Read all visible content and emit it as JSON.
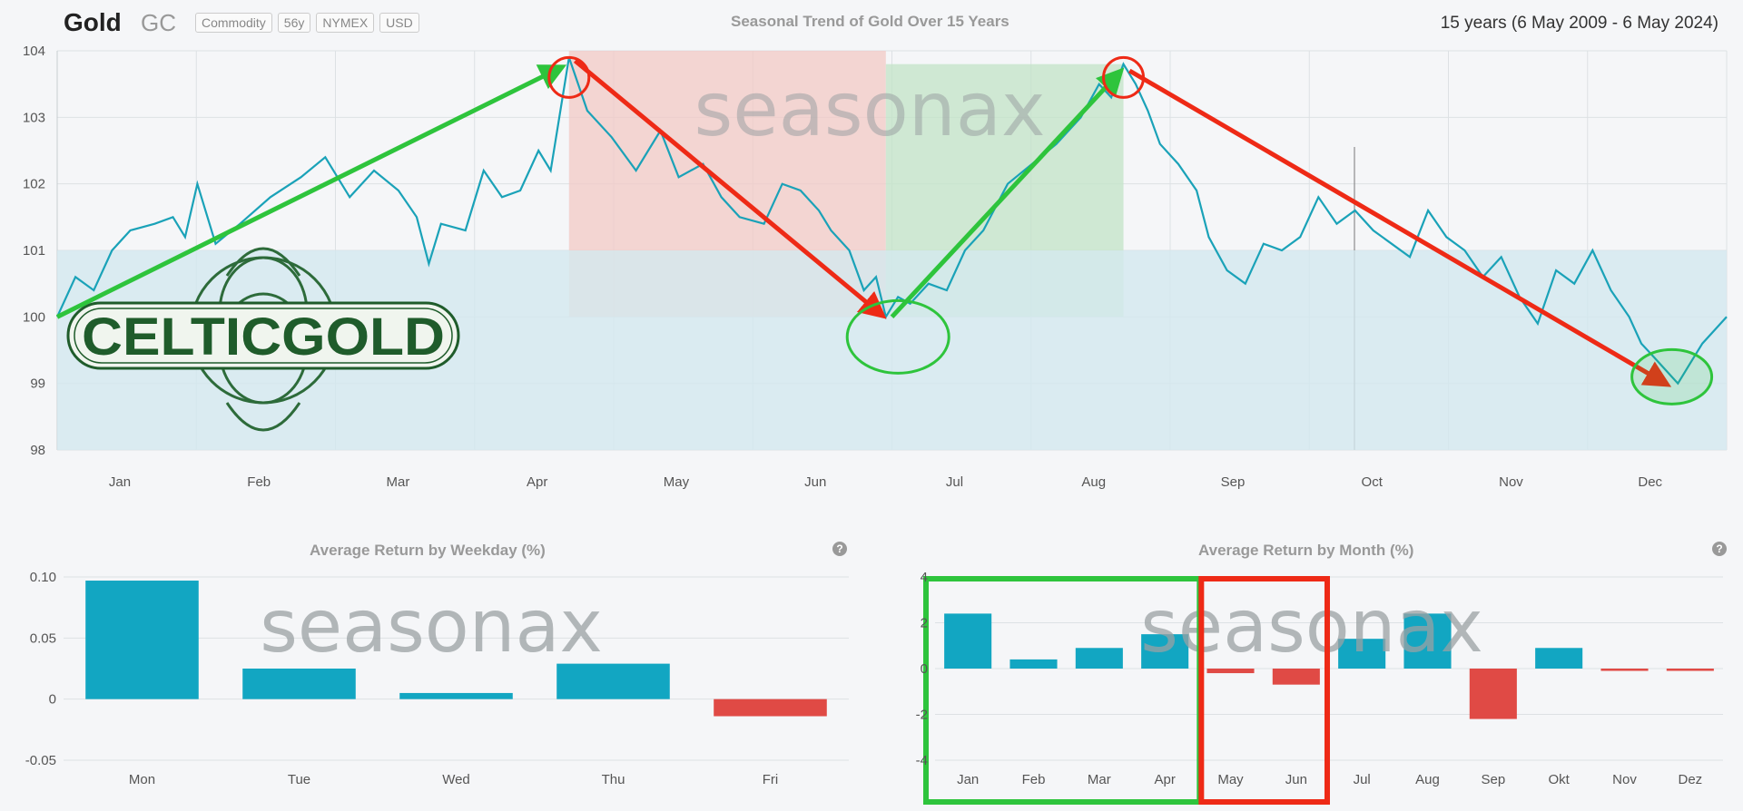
{
  "header": {
    "symbol_name": "Gold",
    "ticker": "GC",
    "tags": [
      "Commodity",
      "56y",
      "NYMEX",
      "USD"
    ],
    "title": "Seasonal Trend of Gold Over 15 Years",
    "range": "15 years (6 May 2009 - 6 May 2024)"
  },
  "watermark": "seasonax",
  "logo_text": "CELTICGOLD",
  "colors": {
    "line": "#1aa2b8",
    "area": "#d3e9ef",
    "bar_pos": "#12a6c2",
    "bar_neg": "#e04a45",
    "arrow_green": "#2ec43c",
    "arrow_red": "#ee2a16",
    "bear_zone": "#f2c9c5",
    "bull_zone": "#c1e3c7"
  },
  "chart_data": [
    {
      "type": "line",
      "title": "Seasonal Trend of Gold Over 15 Years",
      "x_labels": [
        "Jan",
        "Feb",
        "Mar",
        "Apr",
        "May",
        "Jun",
        "Jul",
        "Aug",
        "Sep",
        "Oct",
        "Nov",
        "Dec"
      ],
      "y_ticks": [
        "104",
        "103",
        "102",
        "101",
        "100",
        "99",
        "98"
      ],
      "ylim": [
        98,
        104
      ],
      "grid": true,
      "anchors": [
        [
          0.0,
          100.0
        ],
        [
          0.15,
          100.6
        ],
        [
          0.3,
          100.4
        ],
        [
          0.45,
          101.0
        ],
        [
          0.6,
          101.3
        ],
        [
          0.8,
          101.4
        ],
        [
          0.95,
          101.5
        ],
        [
          1.05,
          101.2
        ],
        [
          1.15,
          102.0
        ],
        [
          1.3,
          101.1
        ],
        [
          1.5,
          101.4
        ],
        [
          1.75,
          101.8
        ],
        [
          2.0,
          102.1
        ],
        [
          2.2,
          102.4
        ],
        [
          2.4,
          101.8
        ],
        [
          2.6,
          102.2
        ],
        [
          2.8,
          101.9
        ],
        [
          2.95,
          101.5
        ],
        [
          3.05,
          100.8
        ],
        [
          3.15,
          101.4
        ],
        [
          3.35,
          101.3
        ],
        [
          3.5,
          102.2
        ],
        [
          3.65,
          101.8
        ],
        [
          3.8,
          101.9
        ],
        [
          3.95,
          102.5
        ],
        [
          4.05,
          102.2
        ],
        [
          4.2,
          103.9
        ],
        [
          4.35,
          103.1
        ],
        [
          4.55,
          102.7
        ],
        [
          4.75,
          102.2
        ],
        [
          4.95,
          102.8
        ],
        [
          5.1,
          102.1
        ],
        [
          5.3,
          102.3
        ],
        [
          5.45,
          101.8
        ],
        [
          5.6,
          101.5
        ],
        [
          5.8,
          101.4
        ],
        [
          5.95,
          102.0
        ],
        [
          6.1,
          101.9
        ],
        [
          6.25,
          101.6
        ],
        [
          6.35,
          101.3
        ],
        [
          6.5,
          101.0
        ],
        [
          6.62,
          100.4
        ],
        [
          6.72,
          100.6
        ],
        [
          6.8,
          100.0
        ],
        [
          6.9,
          100.3
        ],
        [
          7.0,
          100.2
        ],
        [
          7.15,
          100.5
        ],
        [
          7.3,
          100.4
        ],
        [
          7.45,
          101.0
        ],
        [
          7.6,
          101.3
        ],
        [
          7.8,
          102.0
        ],
        [
          8.0,
          102.3
        ],
        [
          8.2,
          102.6
        ],
        [
          8.4,
          103.0
        ],
        [
          8.55,
          103.5
        ],
        [
          8.65,
          103.3
        ],
        [
          8.75,
          103.8
        ],
        [
          8.85,
          103.5
        ],
        [
          8.95,
          103.1
        ],
        [
          9.05,
          102.6
        ],
        [
          9.2,
          102.3
        ],
        [
          9.35,
          101.9
        ],
        [
          9.45,
          101.2
        ],
        [
          9.6,
          100.7
        ],
        [
          9.75,
          100.5
        ],
        [
          9.9,
          101.1
        ],
        [
          10.05,
          101.0
        ],
        [
          10.2,
          101.2
        ],
        [
          10.35,
          101.8
        ],
        [
          10.5,
          101.4
        ],
        [
          10.65,
          101.6
        ],
        [
          10.8,
          101.3
        ],
        [
          10.95,
          101.1
        ],
        [
          11.1,
          100.9
        ],
        [
          11.25,
          101.6
        ],
        [
          11.4,
          101.2
        ],
        [
          11.55,
          101.0
        ],
        [
          11.7,
          100.6
        ],
        [
          11.85,
          100.9
        ],
        [
          12.0,
          100.3
        ],
        [
          12.15,
          99.9
        ],
        [
          12.3,
          100.7
        ],
        [
          12.45,
          100.5
        ],
        [
          12.6,
          101.0
        ],
        [
          12.75,
          100.4
        ],
        [
          12.9,
          100.0
        ],
        [
          13.0,
          99.6
        ],
        [
          13.1,
          99.4
        ],
        [
          13.2,
          99.2
        ],
        [
          13.3,
          99.0
        ],
        [
          13.4,
          99.3
        ],
        [
          13.5,
          99.6
        ],
        [
          13.6,
          99.8
        ],
        [
          13.7,
          100.0
        ]
      ]
    },
    {
      "type": "bar",
      "title": "Average Return by Weekday (%)",
      "categories": [
        "Mon",
        "Tue",
        "Wed",
        "Thu",
        "Fri"
      ],
      "values": [
        0.097,
        0.025,
        0.005,
        0.029,
        -0.014
      ],
      "y_ticks": [
        "0.10",
        "0.05",
        "0",
        "-0.05"
      ],
      "ylim": [
        -0.05,
        0.1
      ]
    },
    {
      "type": "bar",
      "title": "Average Return by Month (%)",
      "categories": [
        "Jan",
        "Feb",
        "Mar",
        "Apr",
        "May",
        "Jun",
        "Jul",
        "Aug",
        "Sep",
        "Okt",
        "Nov",
        "Dez"
      ],
      "values": [
        2.4,
        0.4,
        0.9,
        1.5,
        -0.2,
        -0.7,
        1.3,
        2.4,
        -2.2,
        0.9,
        -0.1,
        -0.1
      ],
      "y_ticks": [
        "4",
        "2",
        "0",
        "-2",
        "-4"
      ],
      "ylim": [
        -4,
        4
      ]
    }
  ]
}
